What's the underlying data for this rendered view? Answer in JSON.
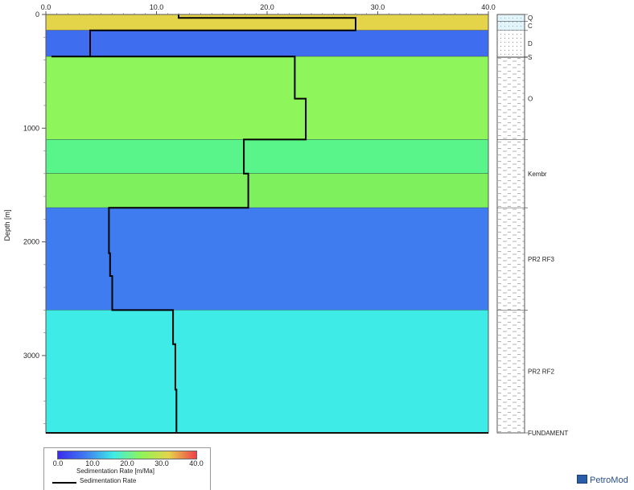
{
  "chart_data": {
    "type": "area",
    "xlim": [
      0,
      40
    ],
    "ylim": [
      0,
      3680
    ],
    "x_ticks": [
      "0.0",
      "10.0",
      "20.0",
      "30.0",
      "40.0"
    ],
    "y_ticks": [
      "0",
      "1000",
      "2000",
      "3000"
    ],
    "ylabel": "Depth [m]",
    "grid": false,
    "layers": [
      {
        "top": 0,
        "base": 140,
        "color": "#e4d44a"
      },
      {
        "top": 140,
        "base": 370,
        "color": "#3f6df0"
      },
      {
        "top": 370,
        "base": 1100,
        "color": "#8ef55a"
      },
      {
        "top": 1100,
        "base": 1400,
        "color": "#5af58a"
      },
      {
        "top": 1400,
        "base": 1700,
        "color": "#7ef05e"
      },
      {
        "top": 1700,
        "base": 2600,
        "color": "#3f7cf0"
      },
      {
        "top": 2600,
        "base": 3680,
        "color": "#3eebe6"
      }
    ],
    "series": [
      {
        "name": "Sedimentation Rate",
        "color": "#000000",
        "x": [
          12,
          12,
          28,
          28,
          4,
          4,
          4,
          0.5,
          0.5,
          22.5,
          22.5,
          22.5,
          23.5,
          23.5,
          17.9,
          17.9,
          17.9,
          18.3,
          18.3,
          5.7,
          5.7,
          5.8,
          5.8,
          6,
          6,
          11.5,
          11.5,
          11.7,
          11.7,
          11.8,
          11.8,
          0.5
        ],
        "y": [
          0,
          30,
          30,
          140,
          140,
          250,
          370,
          370,
          370,
          370,
          740,
          740,
          740,
          1100,
          1100,
          1100,
          1400,
          1400,
          1700,
          1700,
          2100,
          2100,
          2300,
          2300,
          2600,
          2600,
          2900,
          2900,
          3300,
          3300,
          3680,
          3680
        ]
      }
    ],
    "lithology": [
      {
        "label": "Q",
        "top": 0,
        "base": 60
      },
      {
        "label": "C",
        "top": 60,
        "base": 140
      },
      {
        "label": "D",
        "top": 140,
        "base": 370
      },
      {
        "label": "S",
        "top": 370,
        "base": 380
      },
      {
        "label": "O",
        "top": 380,
        "base": 1100
      },
      {
        "label": "Kembr",
        "top": 1100,
        "base": 1700
      },
      {
        "label": "PR2 RF3",
        "top": 1700,
        "base": 2600
      },
      {
        "label": "PR2 RF2",
        "top": 2600,
        "base": 3680
      },
      {
        "label": "FUNDAMENT",
        "top": 3680,
        "base": 3680
      }
    ]
  },
  "legend": {
    "colorbar_ticks": [
      "0.0",
      "10.0",
      "20.0",
      "30.0",
      "40.0"
    ],
    "colorbar_title": "Sedimentation Rate [m/Ma]",
    "line_label": "Sedimentation Rate",
    "colorbar_colors": [
      "#3a2cf0",
      "#3f7cf0",
      "#3eebe6",
      "#8ef55a",
      "#e4d44a",
      "#f0404a"
    ]
  },
  "brand": {
    "label": "PetroMod"
  }
}
